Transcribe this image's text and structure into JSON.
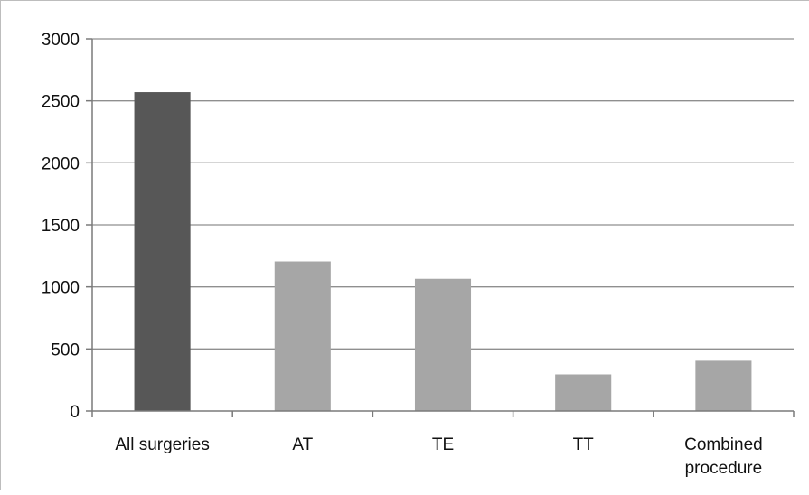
{
  "chart_data": {
    "type": "bar",
    "categories": [
      "All surgeries",
      "AT",
      "TE",
      "TT",
      "Combined procedure"
    ],
    "category_lines": [
      [
        "All surgeries"
      ],
      [
        "AT"
      ],
      [
        "TE"
      ],
      [
        "TT"
      ],
      [
        "Combined",
        "procedure"
      ]
    ],
    "values": [
      2570,
      1205,
      1065,
      295,
      405
    ],
    "bar_colors": [
      "#575757",
      "#a6a6a6",
      "#a6a6a6",
      "#a6a6a6",
      "#a6a6a6"
    ],
    "ylim": [
      0,
      3000
    ],
    "yticks": [
      0,
      500,
      1000,
      1500,
      2000,
      2500,
      3000
    ],
    "grid": true,
    "legend": "none",
    "title": "",
    "xlabel": "",
    "ylabel": ""
  }
}
